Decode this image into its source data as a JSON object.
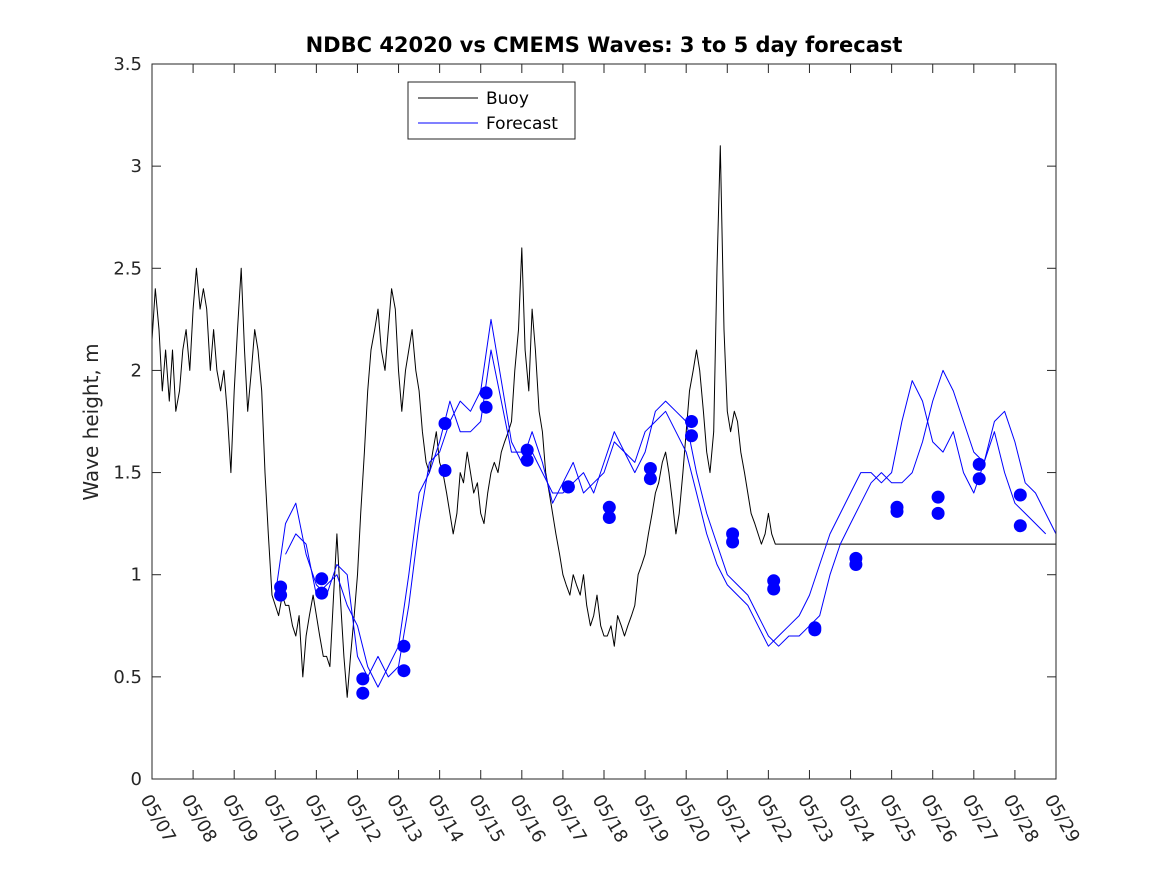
{
  "chart_data": {
    "type": "line",
    "title": "NDBC 42020 vs CMEMS Waves: 3 to 5 day forecast",
    "xlabel": "",
    "ylabel": "Wave height, m",
    "xlim": [
      0,
      22
    ],
    "ylim": [
      0,
      3.5
    ],
    "x_tick_labels": [
      "05/07",
      "05/08",
      "05/09",
      "05/10",
      "05/11",
      "05/12",
      "05/13",
      "05/14",
      "05/15",
      "05/16",
      "05/17",
      "05/18",
      "05/19",
      "05/20",
      "05/21",
      "05/22",
      "05/23",
      "05/24",
      "05/25",
      "05/26",
      "05/27",
      "05/28",
      "05/29"
    ],
    "y_ticks": [
      0,
      0.5,
      1,
      1.5,
      2,
      2.5,
      3,
      3.5
    ],
    "y_tick_labels": [
      "0",
      "0.5",
      "1",
      "1.5",
      "2",
      "2.5",
      "3",
      "3.5"
    ],
    "grid": false,
    "legend": {
      "placement": "top-left",
      "entries": [
        "Buoy",
        "Forecast"
      ]
    },
    "colors": {
      "buoy": "#000000",
      "forecast": "#0000ff",
      "markers": "#0000ff"
    },
    "series": [
      {
        "name": "Buoy",
        "x": [
          0,
          0.08,
          0.17,
          0.25,
          0.33,
          0.42,
          0.5,
          0.58,
          0.67,
          0.75,
          0.83,
          0.92,
          1.0,
          1.08,
          1.17,
          1.25,
          1.33,
          1.42,
          1.5,
          1.58,
          1.67,
          1.75,
          1.83,
          1.92,
          2.0,
          2.08,
          2.17,
          2.25,
          2.33,
          2.42,
          2.5,
          2.58,
          2.67,
          2.75,
          2.83,
          2.92,
          3.0,
          3.08,
          3.17,
          3.25,
          3.33,
          3.42,
          3.5,
          3.58,
          3.67,
          3.75,
          3.83,
          3.92,
          4.0,
          4.08,
          4.17,
          4.25,
          4.33,
          4.42,
          4.5,
          4.58,
          4.67,
          4.75,
          4.83,
          4.92,
          5.0,
          5.08,
          5.17,
          5.25,
          5.33,
          5.42,
          5.5,
          5.58,
          5.67,
          5.75,
          5.83,
          5.92,
          6.0,
          6.08,
          6.17,
          6.25,
          6.33,
          6.42,
          6.5,
          6.58,
          6.67,
          6.75,
          6.83,
          6.92,
          7.0,
          7.08,
          7.17,
          7.25,
          7.33,
          7.42,
          7.5,
          7.58,
          7.67,
          7.75,
          7.83,
          7.92,
          8.0,
          8.08,
          8.17,
          8.25,
          8.33,
          8.42,
          8.5,
          8.58,
          8.67,
          8.75,
          8.83,
          8.92,
          9.0,
          9.08,
          9.17,
          9.25,
          9.33,
          9.42,
          9.5,
          9.58,
          9.67,
          9.75,
          9.83,
          9.92,
          10.0,
          10.08,
          10.17,
          10.25,
          10.33,
          10.42,
          10.5,
          10.58,
          10.67,
          10.75,
          10.83,
          10.92,
          11.0,
          11.08,
          11.17,
          11.25,
          11.33,
          11.42,
          11.5,
          11.58,
          11.67,
          11.75,
          11.83,
          11.92,
          12.0,
          12.08,
          12.17,
          12.25,
          12.33,
          12.42,
          12.5,
          12.58,
          12.67,
          12.75,
          12.83,
          12.92,
          13.0,
          13.08,
          13.17,
          13.25,
          13.33,
          13.42,
          13.5,
          13.58,
          13.67,
          13.75,
          13.83,
          13.92,
          14.0,
          14.08,
          14.17,
          14.25,
          14.33,
          14.42,
          14.5,
          14.58,
          14.67,
          14.75,
          14.83,
          14.92,
          15.0,
          15.08,
          15.17,
          15.25,
          15.33,
          15.42,
          15.5,
          15.58,
          15.67,
          15.75,
          15.83,
          15.92,
          16.0,
          16.08,
          16.17,
          16.25,
          16.33,
          16.42,
          16.5,
          16.58,
          16.67,
          16.75,
          16.83,
          16.92,
          17.0,
          17.08,
          17.17,
          17.25,
          17.33,
          17.42,
          17.5,
          17.58,
          17.67,
          17.75,
          17.83,
          17.92,
          18.0,
          18.08,
          18.17,
          18.25,
          18.33,
          18.42,
          18.5,
          18.58,
          18.67,
          18.75,
          18.83,
          18.92,
          19.0,
          19.08,
          19.17,
          19.25,
          19.33,
          19.42,
          19.5,
          19.58,
          19.67,
          19.75,
          19.83,
          19.92,
          20.0,
          20.08,
          20.17,
          20.25,
          20.33,
          20.42,
          20.5,
          20.58,
          20.67,
          20.75,
          20.83,
          20.92,
          21.0,
          21.08,
          21.17,
          21.25,
          21.33,
          21.42,
          21.5,
          21.58,
          21.67,
          21.75,
          21.83,
          21.92,
          22.0
        ],
        "y": [
          2.15,
          2.4,
          2.2,
          1.9,
          2.1,
          1.85,
          2.1,
          1.8,
          1.9,
          2.1,
          2.2,
          2.0,
          2.3,
          2.5,
          2.3,
          2.4,
          2.3,
          2.0,
          2.2,
          2.0,
          1.9,
          2.0,
          1.8,
          1.5,
          1.9,
          2.2,
          2.5,
          2.1,
          1.8,
          2.0,
          2.2,
          2.1,
          1.9,
          1.5,
          1.2,
          0.9,
          0.85,
          0.8,
          0.9,
          0.85,
          0.85,
          0.75,
          0.7,
          0.8,
          0.5,
          0.7,
          0.8,
          0.9,
          0.8,
          0.7,
          0.6,
          0.6,
          0.55,
          0.9,
          1.2,
          0.9,
          0.6,
          0.4,
          0.6,
          0.8,
          1.0,
          1.3,
          1.6,
          1.9,
          2.1,
          2.2,
          2.3,
          2.1,
          2.0,
          2.2,
          2.4,
          2.3,
          2.0,
          1.8,
          2.0,
          2.1,
          2.2,
          2.0,
          1.9,
          1.7,
          1.55,
          1.5,
          1.6,
          1.7,
          1.55,
          1.5,
          1.4,
          1.3,
          1.2,
          1.3,
          1.5,
          1.45,
          1.6,
          1.5,
          1.4,
          1.45,
          1.3,
          1.25,
          1.4,
          1.5,
          1.55,
          1.5,
          1.6,
          1.65,
          1.7,
          1.75,
          2.0,
          2.2,
          2.6,
          2.1,
          1.9,
          2.3,
          2.1,
          1.8,
          1.7,
          1.5,
          1.4,
          1.3,
          1.2,
          1.1,
          1.0,
          0.95,
          0.9,
          1.0,
          0.95,
          0.9,
          1.0,
          0.85,
          0.75,
          0.8,
          0.9,
          0.75,
          0.7,
          0.7,
          0.75,
          0.65,
          0.8,
          0.75,
          0.7,
          0.75,
          0.8,
          0.85,
          1.0,
          1.05,
          1.1,
          1.2,
          1.3,
          1.4,
          1.45,
          1.55,
          1.6,
          1.5,
          1.35,
          1.2,
          1.3,
          1.5,
          1.7,
          1.9,
          2.0,
          2.1,
          2.0,
          1.8,
          1.6,
          1.5,
          1.7,
          2.5,
          3.1,
          2.2,
          1.8,
          1.7,
          1.8,
          1.75,
          1.6,
          1.5,
          1.4,
          1.3,
          1.25,
          1.2,
          1.15,
          1.2,
          1.3,
          1.2,
          1.15,
          1.15,
          1.15,
          1.15,
          1.15,
          1.15,
          1.15,
          1.15,
          1.15,
          1.15,
          1.15,
          1.15,
          1.15,
          1.15,
          1.15,
          1.15,
          1.15,
          1.15,
          1.15,
          1.15,
          1.15,
          1.15,
          1.15,
          1.15,
          1.15,
          1.15,
          1.15,
          1.15,
          1.15,
          1.15,
          1.15,
          1.15,
          1.15,
          1.15,
          1.15,
          1.15,
          1.15,
          1.15,
          1.15,
          1.15,
          1.15,
          1.15,
          1.15,
          1.15,
          1.15,
          1.15,
          1.15,
          1.15,
          1.15,
          1.15,
          1.15,
          1.15,
          1.15,
          1.15,
          1.15,
          1.15,
          1.15,
          1.15,
          1.15,
          1.15,
          1.15,
          1.15,
          1.15,
          1.15,
          1.15,
          1.15,
          1.15,
          1.15,
          1.15,
          1.15,
          1.15,
          1.15,
          1.15,
          1.15,
          1.15,
          1.15,
          1.15,
          1.15,
          1.15,
          1.15,
          1.15,
          1.15,
          1.15
        ]
      },
      {
        "name": "Forecast",
        "x": [
          3.0,
          3.25,
          3.5,
          3.75,
          4.0,
          4.25,
          4.5,
          4.75,
          5.0,
          5.25,
          5.5,
          5.75,
          6.0,
          6.25,
          6.5,
          6.75,
          7.0,
          7.25,
          7.5,
          7.75,
          8.0,
          8.25,
          8.5,
          8.75,
          9.0,
          9.25,
          9.5,
          9.75,
          10.0,
          10.25,
          10.5,
          10.75,
          11.0,
          11.25,
          11.5,
          11.75,
          12.0,
          12.25,
          12.5,
          12.75,
          13.0,
          13.25,
          13.5,
          13.75,
          14.0,
          14.25,
          14.5,
          14.75,
          15.0,
          15.25,
          15.5,
          15.75,
          16.0,
          16.25,
          16.5,
          16.75,
          17.0,
          17.25,
          17.5,
          17.75,
          18.0,
          18.25,
          18.5,
          18.75,
          19.0,
          19.25,
          19.5,
          19.75,
          20.0,
          20.25,
          20.5,
          20.75,
          21.0,
          21.25,
          21.5,
          21.75,
          22.0
        ],
        "y": [
          0.9,
          1.25,
          1.35,
          1.1,
          0.95,
          0.9,
          1.05,
          1.0,
          0.6,
          0.5,
          0.6,
          0.5,
          0.55,
          0.85,
          1.25,
          1.55,
          1.6,
          1.75,
          1.85,
          1.8,
          1.9,
          2.25,
          1.95,
          1.65,
          1.55,
          1.7,
          1.55,
          1.35,
          1.45,
          1.55,
          1.4,
          1.45,
          1.5,
          1.65,
          1.6,
          1.5,
          1.6,
          1.8,
          1.85,
          1.8,
          1.75,
          1.5,
          1.3,
          1.15,
          1.0,
          0.95,
          0.9,
          0.8,
          0.7,
          0.65,
          0.7,
          0.7,
          0.75,
          0.8,
          1.0,
          1.15,
          1.25,
          1.35,
          1.45,
          1.5,
          1.45,
          1.45,
          1.5,
          1.65,
          1.85,
          2.0,
          1.9,
          1.75,
          1.6,
          1.55,
          1.75,
          1.8,
          1.65,
          1.45,
          1.4,
          1.3,
          1.2
        ]
      },
      {
        "name": "Forecast",
        "x": [
          3.25,
          3.5,
          3.75,
          4.0,
          4.25,
          4.5,
          4.75,
          5.0,
          5.25,
          5.5,
          5.75,
          6.0,
          6.25,
          6.5,
          6.75,
          7.0,
          7.25,
          7.5,
          7.75,
          8.0,
          8.25,
          8.5,
          8.75,
          9.0,
          9.25,
          9.5,
          9.75,
          10.0,
          10.25,
          10.5,
          10.75,
          11.0,
          11.25,
          11.5,
          11.75,
          12.0,
          12.25,
          12.5,
          12.75,
          13.0,
          13.25,
          13.5,
          13.75,
          14.0,
          14.25,
          14.5,
          14.75,
          15.0,
          15.25,
          15.5,
          15.75,
          16.0,
          16.25,
          16.5,
          16.75,
          17.0,
          17.25,
          17.5,
          17.75,
          18.0,
          18.25,
          18.5,
          18.75,
          19.0,
          19.25,
          19.5,
          19.75,
          20.0,
          20.25,
          20.5,
          20.75,
          21.0,
          21.25,
          21.5,
          21.75
        ],
        "y": [
          1.1,
          1.2,
          1.15,
          0.9,
          0.95,
          1.0,
          0.85,
          0.75,
          0.55,
          0.45,
          0.55,
          0.65,
          1.0,
          1.4,
          1.5,
          1.65,
          1.85,
          1.7,
          1.7,
          1.75,
          2.1,
          1.85,
          1.6,
          1.6,
          1.6,
          1.5,
          1.4,
          1.4,
          1.45,
          1.5,
          1.4,
          1.55,
          1.7,
          1.6,
          1.55,
          1.7,
          1.75,
          1.8,
          1.7,
          1.6,
          1.4,
          1.2,
          1.05,
          0.95,
          0.9,
          0.85,
          0.75,
          0.65,
          0.7,
          0.75,
          0.8,
          0.9,
          1.05,
          1.2,
          1.3,
          1.4,
          1.5,
          1.5,
          1.45,
          1.5,
          1.75,
          1.95,
          1.85,
          1.65,
          1.6,
          1.7,
          1.5,
          1.4,
          1.55,
          1.7,
          1.5,
          1.35,
          1.3,
          1.25,
          1.2
        ]
      }
    ],
    "markers": {
      "name": "Forecast day markers",
      "x": [
        3.13,
        3.13,
        4.13,
        4.13,
        5.13,
        5.13,
        6.13,
        6.13,
        7.13,
        7.13,
        8.13,
        8.13,
        9.13,
        9.13,
        10.13,
        10.13,
        11.13,
        11.13,
        12.13,
        12.13,
        13.13,
        13.13,
        14.13,
        14.13,
        15.13,
        15.13,
        16.13,
        16.13,
        17.13,
        17.13,
        18.13,
        18.13,
        19.13,
        19.13,
        20.13,
        20.13,
        21.13,
        21.13
      ],
      "y": [
        0.94,
        0.9,
        0.98,
        0.91,
        0.49,
        0.42,
        0.65,
        0.53,
        1.74,
        1.51,
        1.89,
        1.82,
        1.61,
        1.56,
        1.43,
        1.43,
        1.33,
        1.28,
        1.52,
        1.47,
        1.75,
        1.68,
        1.2,
        1.16,
        0.97,
        0.93,
        0.74,
        0.73,
        1.08,
        1.05,
        1.33,
        1.31,
        1.38,
        1.3,
        1.54,
        1.47,
        1.39,
        1.24
      ]
    }
  }
}
